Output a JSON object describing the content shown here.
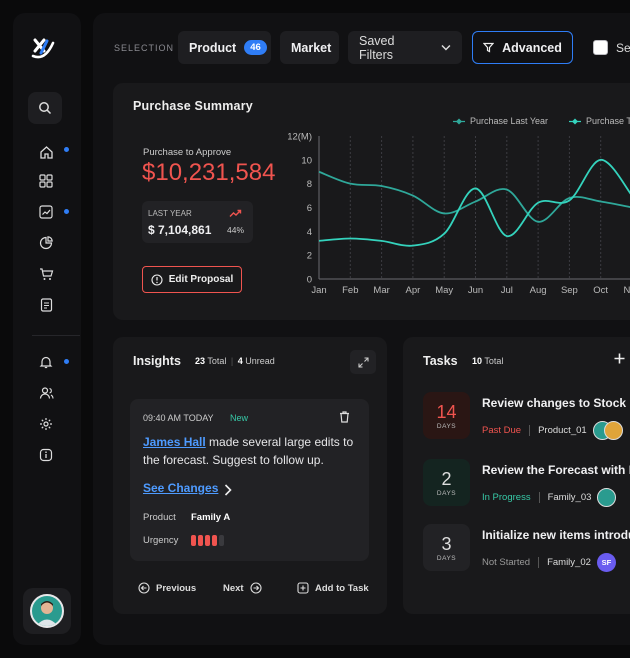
{
  "topbar": {
    "selection_label": "SELECTION",
    "product_label": "Product",
    "product_count": "46",
    "market_label": "Market",
    "saved_filters_label": "Saved Filters",
    "advanced_label": "Advanced",
    "checkbox_label": "Sel"
  },
  "summary": {
    "title": "Purchase Summary",
    "approve_label": "Purchase to Approve",
    "approve_amount": "$10,231,584",
    "last_year_label": "LAST YEAR",
    "last_year_value": "$ 7,104,861",
    "last_year_pct": "44%",
    "edit_label": "Edit Proposal"
  },
  "colors": {
    "accent": "#2f7df6",
    "danger": "#f0544f",
    "line1": "#2fa89a",
    "line2": "#34d3bd"
  },
  "chart_data": {
    "type": "line",
    "title": "",
    "xlabel": "",
    "ylabel": "12(M)",
    "categories": [
      "Jan",
      "Feb",
      "Mar",
      "Apr",
      "May",
      "Jun",
      "Jul",
      "Aug",
      "Sep",
      "Oct",
      "Nov"
    ],
    "yticks": [
      0,
      2,
      4,
      6,
      8,
      10
    ],
    "ylim": [
      0,
      12
    ],
    "legend_position": "top-right",
    "series": [
      {
        "name": "Purchase Last Year",
        "values": [
          9.0,
          8.0,
          7.8,
          7.0,
          5.5,
          6.5,
          7.5,
          4.8,
          6.8,
          6.5,
          6.0
        ]
      },
      {
        "name": "Purchase This Year",
        "values": [
          3.2,
          3.4,
          3.2,
          2.8,
          3.8,
          7.6,
          3.6,
          6.4,
          6.6,
          10.0,
          7.0
        ]
      }
    ]
  },
  "insights": {
    "title": "Insights",
    "total_count": "23",
    "total_label": "Total",
    "unread_count": "4",
    "unread_label": "Unread",
    "time": "09:40 AM TODAY",
    "status": "New",
    "author": "James Hall",
    "message": " made several large edits to the forecast. Suggest to follow up.",
    "see_changes": "See Changes",
    "product_label": "Product",
    "product_value": "Family A",
    "urgency_label": "Urgency",
    "urgency_level": 4,
    "urgency_max": 5,
    "previous": "Previous",
    "next": "Next",
    "add_task": "Add to Task"
  },
  "tasks": {
    "title": "Tasks",
    "total_count": "10",
    "total_label": "Total",
    "items": [
      {
        "num": "14",
        "unit": "DAYS",
        "title": "Review changes to Stock M",
        "status": "Past Due",
        "product": "Product_01"
      },
      {
        "num": "2",
        "unit": "DAYS",
        "title": "Review the Forecast with F",
        "status": "In Progress",
        "product": "Family_03"
      },
      {
        "num": "3",
        "unit": "DAYS",
        "title": "Initialize new items introdu",
        "status": "Not Started",
        "product": "Family_02",
        "initials": "SF"
      }
    ]
  }
}
